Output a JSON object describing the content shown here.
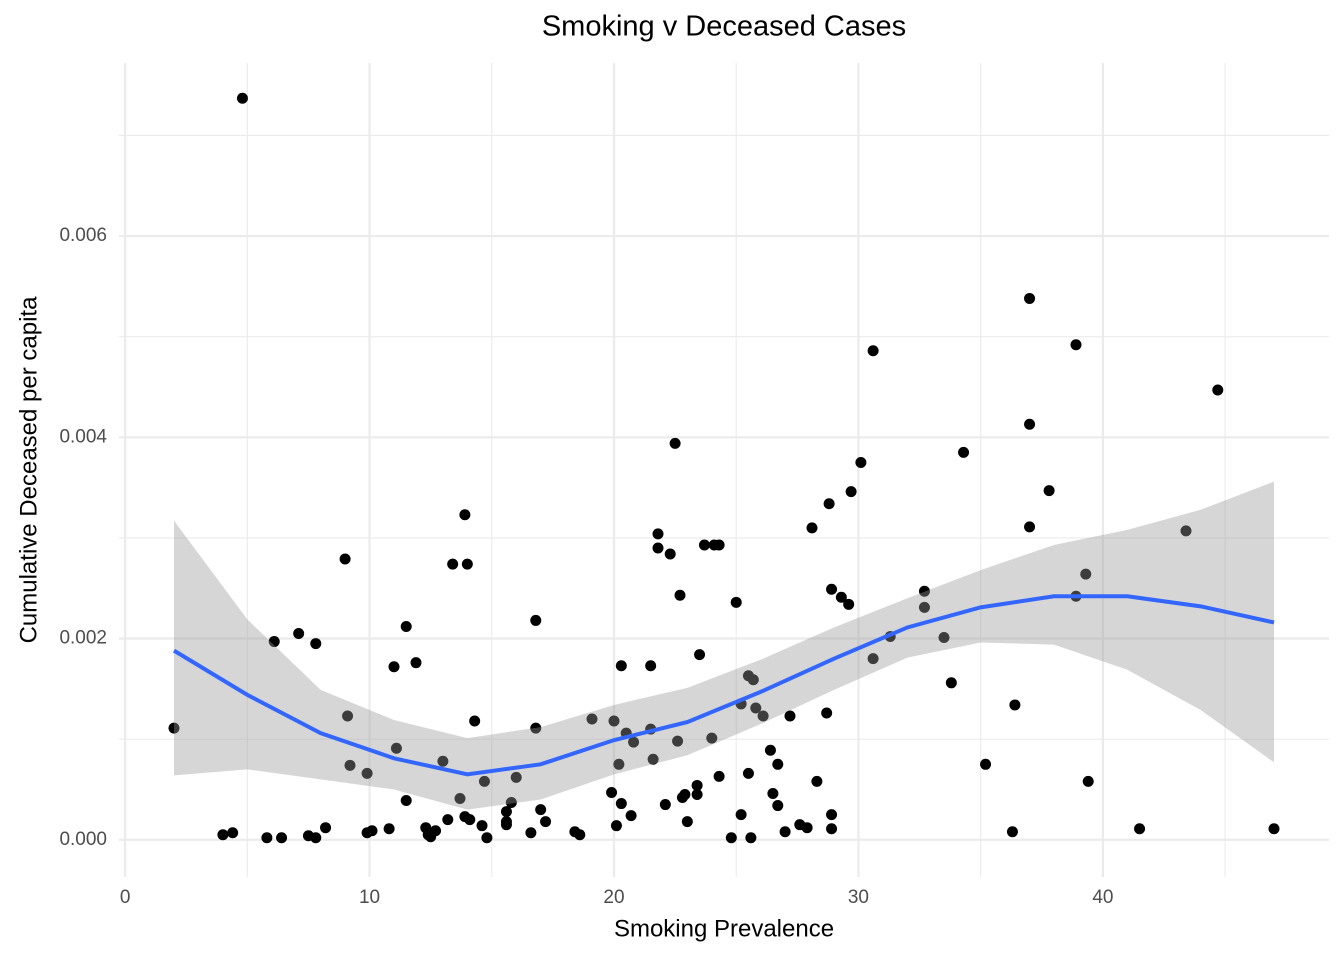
{
  "chart_data": {
    "type": "scatter",
    "title": "Smoking v Deceased Cases",
    "x_label": "Smoking Prevalence",
    "y_label": "Cumulative Deceased per capita",
    "x": [
      2.0,
      4.8,
      4.0,
      4.4,
      5.8,
      6.4,
      6.1,
      7.1,
      7.8,
      7.5,
      7.8,
      8.2,
      9.0,
      9.1,
      9.2,
      9.9,
      10.1,
      9.9,
      10.8,
      11.0,
      11.1,
      11.5,
      11.5,
      11.9,
      12.3,
      12.4,
      12.5,
      12.7,
      13.0,
      13.2,
      13.4,
      13.7,
      13.9,
      13.9,
      14.0,
      14.1,
      14.3,
      14.6,
      14.7,
      14.8,
      15.6,
      15.6,
      15.6,
      15.8,
      16.0,
      16.6,
      16.8,
      16.8,
      17.0,
      17.2,
      18.4,
      18.6,
      19.1,
      19.9,
      20.0,
      20.1,
      20.2,
      20.3,
      20.3,
      20.5,
      20.7,
      20.8,
      21.5,
      21.5,
      21.6,
      21.8,
      21.8,
      22.1,
      22.3,
      22.5,
      22.6,
      22.7,
      22.8,
      22.9,
      23.0,
      23.4,
      23.4,
      23.5,
      23.7,
      24.0,
      24.1,
      24.3,
      24.3,
      24.8,
      25.0,
      25.2,
      25.2,
      25.5,
      25.5,
      25.6,
      25.7,
      25.8,
      26.1,
      26.4,
      26.5,
      26.7,
      26.7,
      27.0,
      27.2,
      27.6,
      27.9,
      28.1,
      28.3,
      28.7,
      28.8,
      28.9,
      28.9,
      28.9,
      29.3,
      29.6,
      29.7,
      30.1,
      30.6,
      30.6,
      31.3,
      32.7,
      32.7,
      33.5,
      33.8,
      34.3,
      35.2,
      36.3,
      36.4,
      37.0,
      37.0,
      37.0,
      37.8,
      38.9,
      38.9,
      39.3,
      39.4,
      41.5,
      43.4,
      44.7,
      47.0
    ],
    "y": [
      0.00111,
      0.00737,
      5e-05,
      7e-05,
      2e-05,
      2e-05,
      0.00197,
      0.00205,
      0.00195,
      4e-05,
      2e-05,
      0.00012,
      0.00279,
      0.00123,
      0.00074,
      7e-05,
      9e-05,
      0.00066,
      0.00011,
      0.00172,
      0.00091,
      0.00212,
      0.00039,
      0.00176,
      0.00012,
      5e-05,
      3e-05,
      9e-05,
      0.00078,
      0.0002,
      0.00274,
      0.00041,
      0.00023,
      0.00323,
      0.00274,
      0.0002,
      0.00118,
      0.00014,
      0.00058,
      2e-05,
      0.00028,
      0.00015,
      0.00018,
      0.00037,
      0.00062,
      7e-05,
      0.00218,
      0.00111,
      0.0003,
      0.00018,
      8e-05,
      5e-05,
      0.0012,
      0.00047,
      0.00118,
      0.00014,
      0.00075,
      0.00173,
      0.00036,
      0.00106,
      0.00024,
      0.00097,
      0.00173,
      0.0011,
      0.0008,
      0.00304,
      0.0029,
      0.00035,
      0.00284,
      0.00394,
      0.00098,
      0.00243,
      0.00042,
      0.00045,
      0.00018,
      0.00054,
      0.00045,
      0.00184,
      0.00293,
      0.00101,
      0.00293,
      0.00293,
      0.00063,
      2e-05,
      0.00236,
      0.00025,
      0.00135,
      0.00163,
      0.00066,
      2e-05,
      0.00159,
      0.00131,
      0.00123,
      0.00089,
      0.00046,
      0.00075,
      0.00034,
      8e-05,
      0.00123,
      0.00015,
      0.00012,
      0.0031,
      0.00058,
      0.00126,
      0.00334,
      0.00249,
      0.00025,
      0.00011,
      0.00241,
      0.00234,
      0.00346,
      0.00375,
      0.00486,
      0.0018,
      0.00202,
      0.00247,
      0.00231,
      0.00201,
      0.00156,
      0.00385,
      0.00075,
      8e-05,
      0.00134,
      0.00538,
      0.00413,
      0.00311,
      0.00347,
      0.00492,
      0.00242,
      0.00264,
      0.00058,
      0.00011,
      0.00307,
      0.00447,
      0.00011
    ],
    "color": "#000000",
    "smooth": {
      "x": [
        2,
        5,
        8,
        11,
        14,
        17,
        20,
        23,
        26,
        29,
        32,
        35,
        38,
        41,
        44,
        47
      ],
      "y": [
        0.00188,
        0.00144,
        0.00106,
        0.00081,
        0.00065,
        0.00075,
        0.00099,
        0.00117,
        0.00147,
        0.0018,
        0.00211,
        0.00231,
        0.00242,
        0.00242,
        0.00232,
        0.00216
      ],
      "ymin": [
        0.00064,
        0.0007,
        0.0006,
        0.0005,
        0.0003,
        0.0004,
        0.00065,
        0.00084,
        0.00115,
        0.00149,
        0.00181,
        0.00196,
        0.00194,
        0.00169,
        0.00129,
        0.00077
      ],
      "ymax": [
        0.00317,
        0.00219,
        0.00149,
        0.00119,
        0.00101,
        0.00112,
        0.00134,
        0.00151,
        0.00179,
        0.00211,
        0.0024,
        0.00268,
        0.00293,
        0.00308,
        0.00328,
        0.00356
      ],
      "color": "#3366ff",
      "fill": "#999999"
    },
    "xlim": [
      -0.25,
      49.25
    ],
    "ylim": [
      -0.00037,
      0.00772
    ],
    "xticks": [
      0,
      10,
      20,
      30,
      40
    ],
    "yticks": [
      {
        "value": 0,
        "label": "0.000"
      },
      {
        "value": 0.002,
        "label": "0.002"
      },
      {
        "value": 0.004,
        "label": "0.004"
      },
      {
        "value": 0.006,
        "label": "0.006"
      }
    ],
    "xminor": [
      5,
      15,
      25,
      35,
      45
    ],
    "yminor": [
      0.001,
      0.003,
      0.005,
      0.007
    ],
    "grid": true
  }
}
